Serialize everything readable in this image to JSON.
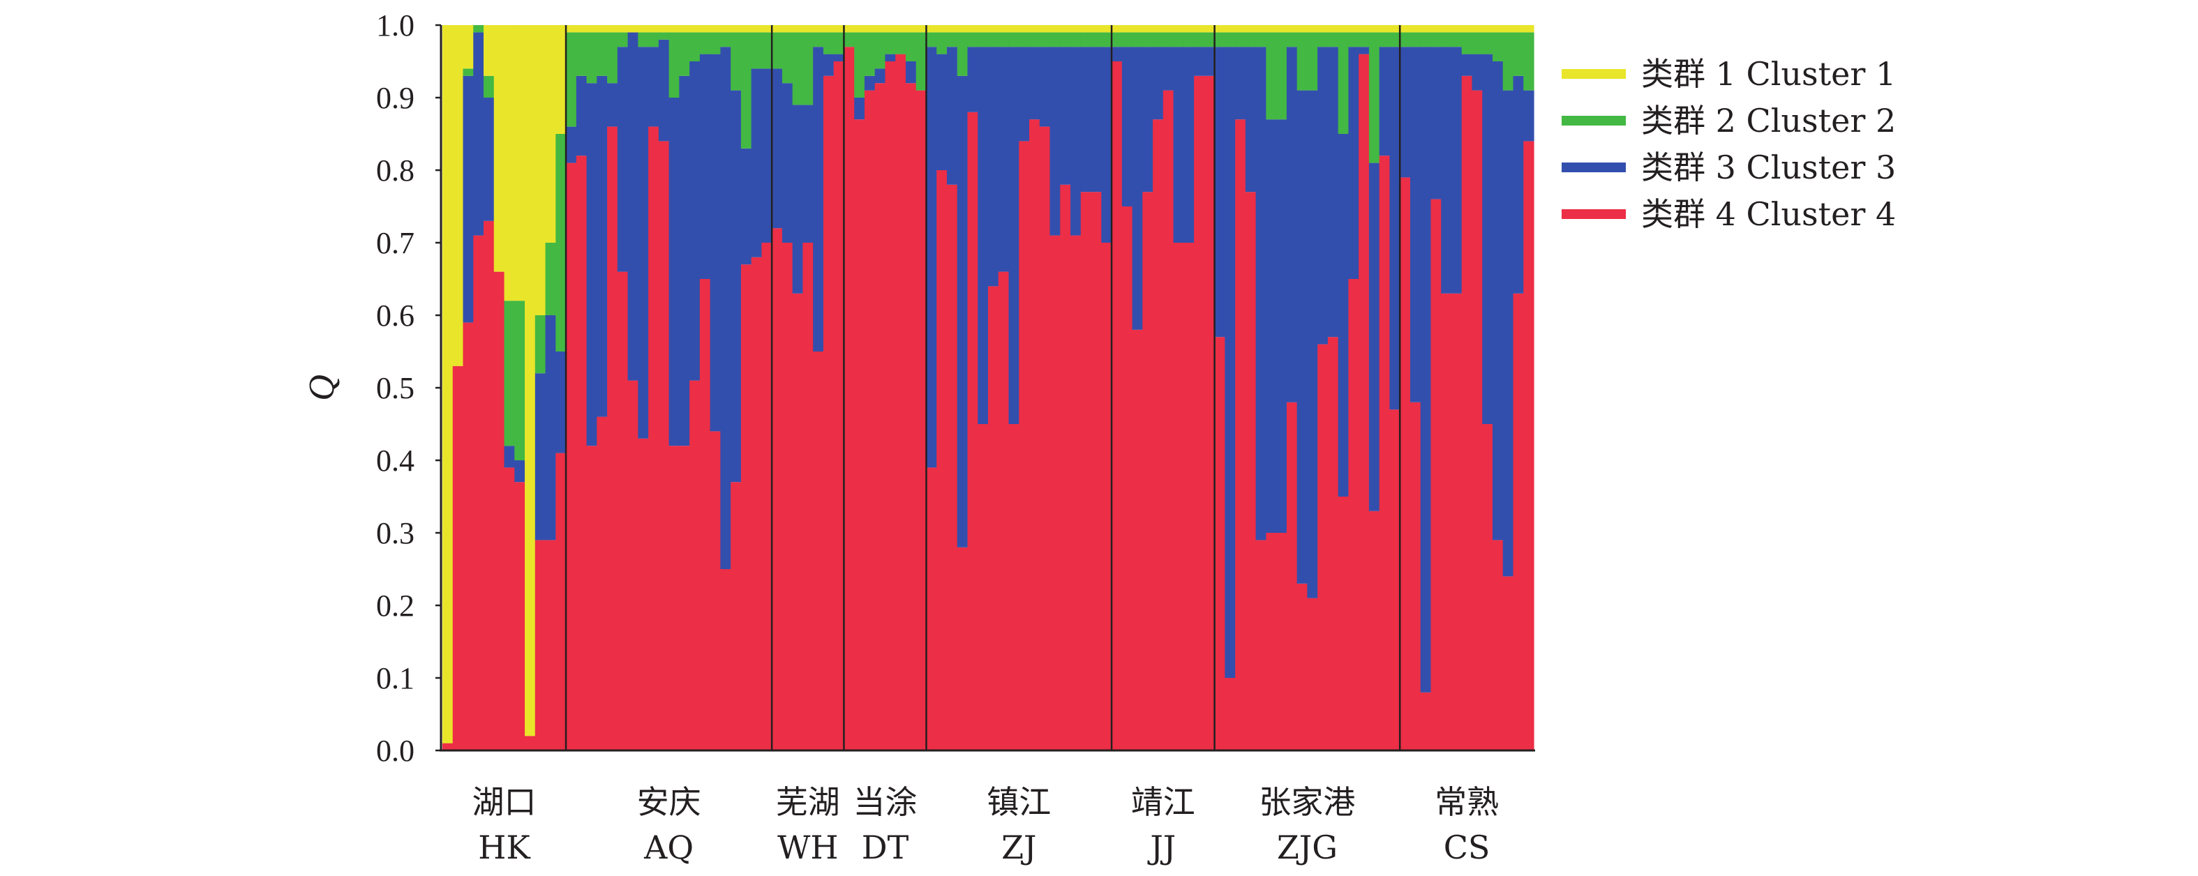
{
  "chart_data": {
    "type": "bar",
    "stacked": true,
    "subtype": "structure-admixture-plot",
    "ylabel": "Q",
    "ylim": [
      0,
      1
    ],
    "yticks": [
      "0.0",
      "0.1",
      "0.2",
      "0.3",
      "0.4",
      "0.5",
      "0.6",
      "0.7",
      "0.8",
      "0.9",
      "1.0"
    ],
    "legend_position": "right",
    "series": [
      {
        "name": "类群 1 Cluster 1",
        "color": "#e9e52a"
      },
      {
        "name": "类群 2 Cluster 2",
        "color": "#43b843"
      },
      {
        "name": "类群 3 Cluster 3",
        "color": "#334fad"
      },
      {
        "name": "类群 4 Cluster 4",
        "color": "#ec2e46"
      }
    ],
    "populations": [
      {
        "cn": "湖口",
        "code": "HK",
        "individuals": [
          [
            0.99,
            0.0,
            0.0,
            0.01
          ],
          [
            0.47,
            0.0,
            0.0,
            0.53
          ],
          [
            0.06,
            0.01,
            0.34,
            0.59
          ],
          [
            0.0,
            0.01,
            0.28,
            0.71
          ],
          [
            0.07,
            0.03,
            0.17,
            0.73
          ],
          [
            0.34,
            0.0,
            0.0,
            0.66
          ],
          [
            0.38,
            0.2,
            0.03,
            0.39
          ],
          [
            0.38,
            0.22,
            0.03,
            0.37
          ],
          [
            0.98,
            0.0,
            0.0,
            0.02
          ],
          [
            0.4,
            0.08,
            0.23,
            0.29
          ],
          [
            0.3,
            0.1,
            0.31,
            0.29
          ],
          [
            0.15,
            0.3,
            0.14,
            0.41
          ]
        ]
      },
      {
        "cn": "安庆",
        "code": "AQ",
        "individuals": [
          [
            0.01,
            0.13,
            0.05,
            0.81
          ],
          [
            0.01,
            0.06,
            0.11,
            0.82
          ],
          [
            0.01,
            0.07,
            0.5,
            0.42
          ],
          [
            0.01,
            0.06,
            0.47,
            0.46
          ],
          [
            0.01,
            0.07,
            0.06,
            0.86
          ],
          [
            0.01,
            0.02,
            0.31,
            0.66
          ],
          [
            0.01,
            0.0,
            0.48,
            0.51
          ],
          [
            0.01,
            0.02,
            0.54,
            0.43
          ],
          [
            0.01,
            0.02,
            0.11,
            0.86
          ],
          [
            0.01,
            0.01,
            0.14,
            0.84
          ],
          [
            0.01,
            0.09,
            0.48,
            0.42
          ],
          [
            0.01,
            0.06,
            0.51,
            0.42
          ],
          [
            0.01,
            0.04,
            0.44,
            0.51
          ],
          [
            0.01,
            0.03,
            0.31,
            0.65
          ],
          [
            0.01,
            0.03,
            0.52,
            0.44
          ],
          [
            0.01,
            0.02,
            0.72,
            0.25
          ],
          [
            0.01,
            0.08,
            0.54,
            0.37
          ],
          [
            0.01,
            0.16,
            0.16,
            0.67
          ],
          [
            0.01,
            0.05,
            0.26,
            0.68
          ],
          [
            0.01,
            0.05,
            0.24,
            0.7
          ]
        ]
      },
      {
        "cn": "芜湖",
        "code": "WH",
        "individuals": [
          [
            0.01,
            0.05,
            0.22,
            0.72
          ],
          [
            0.01,
            0.07,
            0.22,
            0.7
          ],
          [
            0.01,
            0.1,
            0.26,
            0.63
          ],
          [
            0.01,
            0.1,
            0.19,
            0.7
          ],
          [
            0.01,
            0.02,
            0.42,
            0.55
          ],
          [
            0.01,
            0.03,
            0.03,
            0.93
          ],
          [
            0.01,
            0.03,
            0.01,
            0.95
          ]
        ]
      },
      {
        "cn": "当涂",
        "code": "DT",
        "individuals": [
          [
            0.01,
            0.02,
            0.0,
            0.97
          ],
          [
            0.01,
            0.09,
            0.03,
            0.87
          ],
          [
            0.01,
            0.06,
            0.02,
            0.91
          ],
          [
            0.01,
            0.05,
            0.02,
            0.92
          ],
          [
            0.01,
            0.03,
            0.01,
            0.95
          ],
          [
            0.01,
            0.03,
            0.0,
            0.96
          ],
          [
            0.01,
            0.04,
            0.03,
            0.92
          ],
          [
            0.01,
            0.08,
            0.0,
            0.91
          ]
        ]
      },
      {
        "cn": "镇江",
        "code": "ZJ",
        "individuals": [
          [
            0.01,
            0.02,
            0.58,
            0.39
          ],
          [
            0.01,
            0.03,
            0.16,
            0.8
          ],
          [
            0.01,
            0.02,
            0.19,
            0.78
          ],
          [
            0.01,
            0.06,
            0.65,
            0.28
          ],
          [
            0.01,
            0.02,
            0.09,
            0.88
          ],
          [
            0.01,
            0.02,
            0.52,
            0.45
          ],
          [
            0.01,
            0.02,
            0.33,
            0.64
          ],
          [
            0.01,
            0.02,
            0.31,
            0.66
          ],
          [
            0.01,
            0.02,
            0.52,
            0.45
          ],
          [
            0.01,
            0.02,
            0.13,
            0.84
          ],
          [
            0.01,
            0.02,
            0.1,
            0.87
          ],
          [
            0.01,
            0.02,
            0.11,
            0.86
          ],
          [
            0.01,
            0.02,
            0.26,
            0.71
          ],
          [
            0.01,
            0.02,
            0.19,
            0.78
          ],
          [
            0.01,
            0.02,
            0.26,
            0.71
          ],
          [
            0.01,
            0.02,
            0.2,
            0.77
          ],
          [
            0.01,
            0.02,
            0.2,
            0.77
          ],
          [
            0.01,
            0.02,
            0.27,
            0.7
          ]
        ]
      },
      {
        "cn": "靖江",
        "code": "JJ",
        "individuals": [
          [
            0.01,
            0.02,
            0.02,
            0.95
          ],
          [
            0.01,
            0.02,
            0.22,
            0.75
          ],
          [
            0.01,
            0.02,
            0.39,
            0.58
          ],
          [
            0.01,
            0.02,
            0.2,
            0.77
          ],
          [
            0.01,
            0.02,
            0.1,
            0.87
          ],
          [
            0.01,
            0.02,
            0.06,
            0.91
          ],
          [
            0.01,
            0.02,
            0.27,
            0.7
          ],
          [
            0.01,
            0.02,
            0.27,
            0.7
          ],
          [
            0.01,
            0.02,
            0.04,
            0.93
          ],
          [
            0.01,
            0.02,
            0.04,
            0.93
          ]
        ]
      },
      {
        "cn": "张家港",
        "code": "ZJG",
        "individuals": [
          [
            0.01,
            0.02,
            0.4,
            0.57
          ],
          [
            0.01,
            0.02,
            0.87,
            0.1
          ],
          [
            0.01,
            0.02,
            0.1,
            0.87
          ],
          [
            0.01,
            0.02,
            0.2,
            0.77
          ],
          [
            0.01,
            0.02,
            0.68,
            0.29
          ],
          [
            0.01,
            0.12,
            0.57,
            0.3
          ],
          [
            0.01,
            0.12,
            0.57,
            0.3
          ],
          [
            0.01,
            0.02,
            0.49,
            0.48
          ],
          [
            0.01,
            0.08,
            0.68,
            0.23
          ],
          [
            0.01,
            0.08,
            0.7,
            0.21
          ],
          [
            0.01,
            0.02,
            0.41,
            0.56
          ],
          [
            0.01,
            0.02,
            0.4,
            0.57
          ],
          [
            0.01,
            0.14,
            0.5,
            0.35
          ],
          [
            0.01,
            0.02,
            0.32,
            0.65
          ],
          [
            0.01,
            0.02,
            0.01,
            0.96
          ],
          [
            0.01,
            0.18,
            0.48,
            0.33
          ],
          [
            0.01,
            0.02,
            0.15,
            0.82
          ],
          [
            0.01,
            0.02,
            0.5,
            0.47
          ]
        ]
      },
      {
        "cn": "常熟",
        "code": "CS",
        "individuals": [
          [
            0.01,
            0.02,
            0.18,
            0.79
          ],
          [
            0.01,
            0.02,
            0.49,
            0.48
          ],
          [
            0.01,
            0.02,
            0.89,
            0.08
          ],
          [
            0.01,
            0.02,
            0.21,
            0.76
          ],
          [
            0.01,
            0.02,
            0.34,
            0.63
          ],
          [
            0.01,
            0.02,
            0.34,
            0.63
          ],
          [
            0.01,
            0.03,
            0.03,
            0.93
          ],
          [
            0.01,
            0.03,
            0.05,
            0.91
          ],
          [
            0.01,
            0.03,
            0.51,
            0.45
          ],
          [
            0.01,
            0.04,
            0.66,
            0.29
          ],
          [
            0.01,
            0.08,
            0.67,
            0.24
          ],
          [
            0.01,
            0.06,
            0.3,
            0.63
          ],
          [
            0.01,
            0.08,
            0.07,
            0.84
          ]
        ]
      }
    ]
  }
}
